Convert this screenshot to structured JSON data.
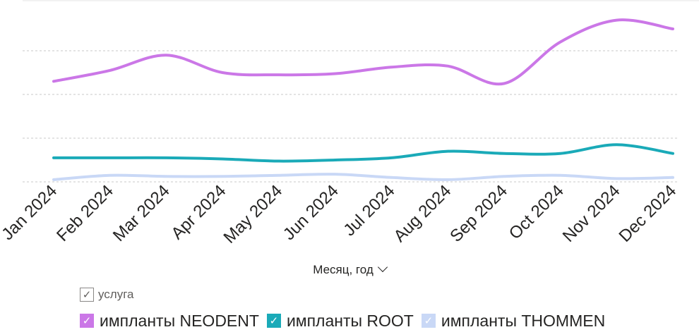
{
  "chart_data": {
    "type": "line",
    "categories": [
      "Jan 2024",
      "Feb 2024",
      "Mar 2024",
      "Apr 2024",
      "May 2024",
      "Jun 2024",
      "Jul 2024",
      "Aug 2024",
      "Sep 2024",
      "Oct 2024",
      "Nov 2024",
      "Dec 2024"
    ],
    "series": [
      {
        "name": "импланты NEODENT",
        "color": "#cb77e7",
        "values": [
          46,
          51,
          58,
          50,
          49,
          49.5,
          52.5,
          53,
          45,
          64,
          74,
          70
        ]
      },
      {
        "name": "импланты ROOT",
        "color": "#1aaab8",
        "values": [
          11,
          11,
          11,
          10.5,
          9.5,
          10,
          11,
          14,
          13,
          13,
          17,
          13
        ]
      },
      {
        "name": "импланты THOMMEN",
        "color": "#c9d8f6",
        "values": [
          1,
          3,
          2.5,
          2.5,
          3,
          3.5,
          2,
          1,
          2.5,
          3,
          1.5,
          2
        ]
      }
    ],
    "xlabel": "Месяц, год",
    "ylim": [
      0,
      80
    ],
    "grid": true,
    "legend_title": "услуга",
    "legend_position": "bottom-left"
  }
}
